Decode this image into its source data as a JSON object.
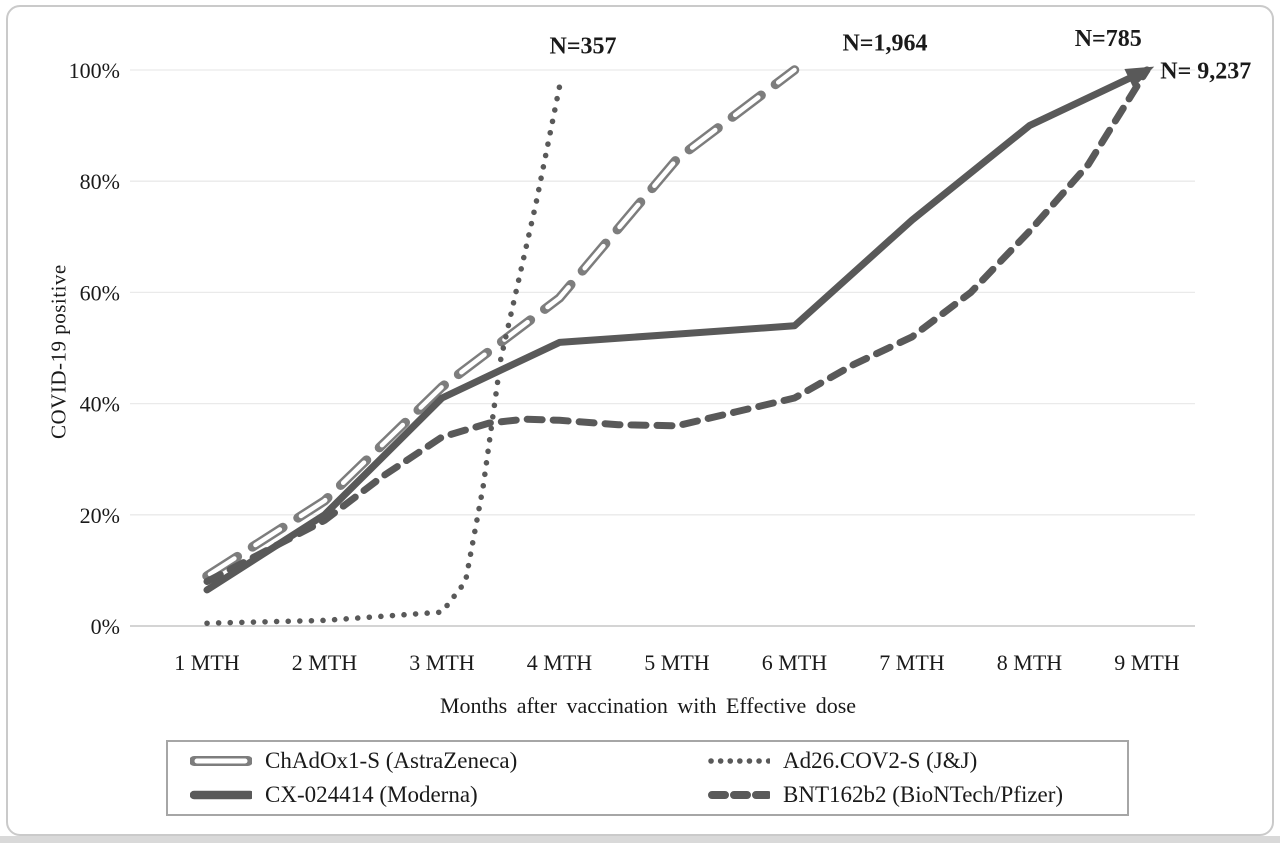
{
  "colors": {
    "series_line": "#595959",
    "hollow_dash_outline": "#7d7d7d",
    "hollow_dash_fill": "#ffffff",
    "gridline": "#eaeaea",
    "axis_line": "#c6c6c6",
    "text": "#1a1a1a",
    "card_border": "#cacaca",
    "legend_border": "#a6a6a6",
    "bottom_strip": "#d9d9d9"
  },
  "chart_data": {
    "type": "line",
    "title": "",
    "xlabel": "Months after vaccination with Effective dose",
    "ylabel": "COVID-19 positive",
    "x_tick_labels": [
      "1 MTH",
      "2 MTH",
      "3 MTH",
      "4 MTH",
      "5 MTH",
      "6 MTH",
      "7 MTH",
      "8 MTH",
      "9 MTH"
    ],
    "x_tick_months": [
      1,
      2,
      3,
      4,
      5,
      6,
      7,
      8,
      9
    ],
    "y_tick_labels": [
      "0%",
      "20%",
      "40%",
      "60%",
      "80%",
      "100%"
    ],
    "y_tick_values": [
      0,
      20,
      40,
      60,
      80,
      100
    ],
    "ylim": [
      0,
      100
    ],
    "grid": "horizontal",
    "legend_position": "bottom",
    "series": [
      {
        "name": "ChAdOx1-S (AstraZeneca)",
        "style": "long-dash-hollow",
        "points": [
          [
            1,
            9
          ],
          [
            2,
            22.5
          ],
          [
            3,
            43
          ],
          [
            4,
            59
          ],
          [
            5,
            84
          ],
          [
            6,
            100
          ]
        ]
      },
      {
        "name": "Ad26.COV2-S (J&J)",
        "style": "dotted",
        "points": [
          [
            1,
            0.5
          ],
          [
            2,
            1
          ],
          [
            3,
            2.5
          ],
          [
            3.2,
            8
          ],
          [
            3.35,
            25
          ],
          [
            3.5,
            48
          ],
          [
            3.65,
            62
          ],
          [
            3.8,
            76
          ],
          [
            4,
            97
          ]
        ]
      },
      {
        "name": "CX-024414 (Moderna)",
        "style": "solid",
        "arrow_at_end": true,
        "points": [
          [
            1,
            6.5
          ],
          [
            2,
            20
          ],
          [
            3,
            41
          ],
          [
            4,
            51
          ],
          [
            5,
            52.5
          ],
          [
            6,
            54
          ],
          [
            7,
            73
          ],
          [
            8,
            90
          ],
          [
            9,
            100
          ]
        ]
      },
      {
        "name": "BNT162b2 (BioNTech/Pfizer)",
        "style": "short-dash",
        "points": [
          [
            1,
            8
          ],
          [
            2,
            19
          ],
          [
            2.5,
            27
          ],
          [
            3,
            34
          ],
          [
            3.4,
            36.5
          ],
          [
            3.7,
            37.2
          ],
          [
            4,
            37
          ],
          [
            4.5,
            36.2
          ],
          [
            5,
            36
          ],
          [
            5.5,
            38.5
          ],
          [
            6,
            41
          ],
          [
            6.5,
            47
          ],
          [
            7,
            52
          ],
          [
            7.5,
            60
          ],
          [
            8,
            71
          ],
          [
            8.5,
            83
          ],
          [
            9,
            100
          ]
        ]
      }
    ],
    "annotations": [
      {
        "text": "N=357",
        "month": 4.2,
        "pct": 103,
        "series": "Ad26.COV2-S (J&J)"
      },
      {
        "text": "N=1,964",
        "month": 6.77,
        "pct": 103.5,
        "series": "ChAdOx1-S (AstraZeneca)"
      },
      {
        "text": "N=785",
        "month": 8.67,
        "pct": 104.3,
        "series": "CX-024414 (Moderna)"
      },
      {
        "text": "N= 9,237",
        "month": 9.5,
        "pct": 98.5,
        "series": "BNT162b2 (BioNTech/Pfizer)"
      }
    ]
  }
}
